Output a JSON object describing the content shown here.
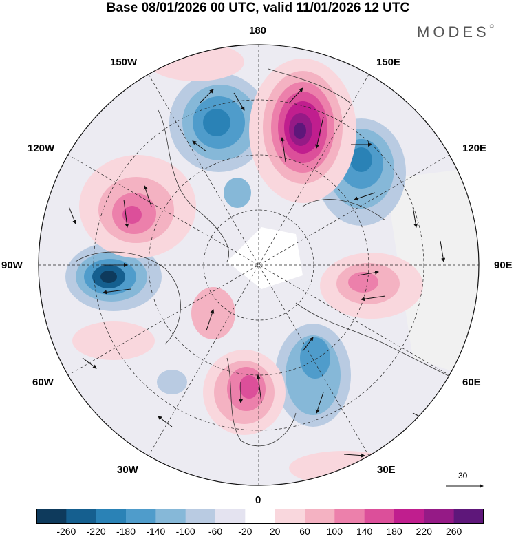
{
  "title": "Base 08/01/2026 00 UTC, valid 11/01/2026 12 UTC",
  "brand": "MODES",
  "brand_mark": "©",
  "longitude_labels": {
    "top": "180",
    "bottom": "0",
    "left": "90W",
    "right": "90E",
    "upper_left_1": "150W",
    "upper_left_2": "120W",
    "upper_right_1": "150E",
    "upper_right_2": "120E",
    "lower_left_1": "60W",
    "lower_left_2": "30W",
    "lower_right_1": "60E",
    "lower_right_2": "30E"
  },
  "reference_vector": "30",
  "colorbar": {
    "ticks": [
      "-260",
      "-220",
      "-180",
      "-140",
      "-100",
      "-60",
      "-20",
      "20",
      "60",
      "100",
      "140",
      "180",
      "220",
      "260"
    ],
    "colors": [
      "#0e3a5c",
      "#155f8f",
      "#2a82b6",
      "#4f9ccb",
      "#86b8d8",
      "#b9cbe2",
      "#e4e3f0",
      "#ffffff",
      "#f9d7dd",
      "#f4b2c2",
      "#ec80ab",
      "#dc4f9a",
      "#c01e8e",
      "#951a86",
      "#5e177a"
    ]
  },
  "colors": {
    "land_outline": "#333333",
    "graticule": "#222222",
    "arrow": "#111111"
  }
}
